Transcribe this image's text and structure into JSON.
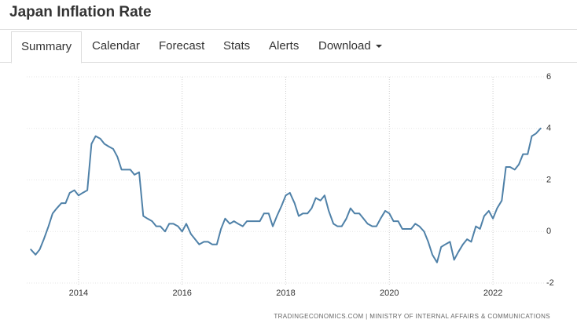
{
  "header": {
    "title": "Japan Inflation Rate"
  },
  "tabs": [
    "Summary",
    "Calendar",
    "Forecast",
    "Stats",
    "Alerts",
    "Download"
  ],
  "chart_data": {
    "type": "line",
    "color": "#4f81a8",
    "source": "TRADINGECONOMICS.COM | MINISTRY OF INTERNAL AFFAIRS & COMMUNICATIONS",
    "xlim": [
      2013,
      2023
    ],
    "xticks": [
      2014,
      2016,
      2018,
      2020,
      2022
    ],
    "ylim": [
      -2,
      6
    ],
    "yticks": [
      -2,
      0,
      2,
      4,
      6
    ],
    "grid": true,
    "x": [
      2013.08,
      2013.17,
      2013.25,
      2013.33,
      2013.42,
      2013.5,
      2013.58,
      2013.67,
      2013.75,
      2013.83,
      2013.92,
      2014,
      2014.08,
      2014.17,
      2014.25,
      2014.33,
      2014.42,
      2014.5,
      2014.58,
      2014.67,
      2014.75,
      2014.83,
      2014.92,
      2015,
      2015.08,
      2015.17,
      2015.25,
      2015.33,
      2015.42,
      2015.5,
      2015.58,
      2015.67,
      2015.75,
      2015.83,
      2015.92,
      2016,
      2016.08,
      2016.17,
      2016.25,
      2016.33,
      2016.42,
      2016.5,
      2016.58,
      2016.67,
      2016.75,
      2016.83,
      2016.92,
      2017,
      2017.08,
      2017.17,
      2017.25,
      2017.33,
      2017.42,
      2017.5,
      2017.58,
      2017.67,
      2017.75,
      2017.83,
      2017.92,
      2018,
      2018.08,
      2018.17,
      2018.25,
      2018.33,
      2018.42,
      2018.5,
      2018.58,
      2018.67,
      2018.75,
      2018.83,
      2018.92,
      2019,
      2019.08,
      2019.17,
      2019.25,
      2019.33,
      2019.42,
      2019.5,
      2019.58,
      2019.67,
      2019.75,
      2019.83,
      2019.92,
      2020,
      2020.08,
      2020.17,
      2020.25,
      2020.33,
      2020.42,
      2020.5,
      2020.58,
      2020.67,
      2020.75,
      2020.83,
      2020.92,
      2021,
      2021.08,
      2021.17,
      2021.25,
      2021.33,
      2021.42,
      2021.5,
      2021.58,
      2021.67,
      2021.75,
      2021.83,
      2021.92,
      2022,
      2022.08,
      2022.17,
      2022.25,
      2022.33,
      2022.42,
      2022.5,
      2022.58,
      2022.67,
      2022.75,
      2022.83,
      2022.92
    ],
    "values": [
      -0.7,
      -0.9,
      -0.7,
      -0.3,
      0.2,
      0.7,
      0.9,
      1.1,
      1.1,
      1.5,
      1.6,
      1.4,
      1.5,
      1.6,
      3.4,
      3.7,
      3.6,
      3.4,
      3.3,
      3.2,
      2.9,
      2.4,
      2.4,
      2.4,
      2.2,
      2.3,
      0.6,
      0.5,
      0.4,
      0.2,
      0.2,
      0.0,
      0.3,
      0.3,
      0.2,
      0.0,
      0.3,
      -0.1,
      -0.3,
      -0.5,
      -0.4,
      -0.4,
      -0.5,
      -0.5,
      0.1,
      0.5,
      0.3,
      0.4,
      0.3,
      0.2,
      0.4,
      0.4,
      0.4,
      0.4,
      0.7,
      0.7,
      0.2,
      0.6,
      1.0,
      1.4,
      1.5,
      1.1,
      0.6,
      0.7,
      0.7,
      0.9,
      1.3,
      1.2,
      1.4,
      0.8,
      0.3,
      0.2,
      0.2,
      0.5,
      0.9,
      0.7,
      0.7,
      0.5,
      0.3,
      0.2,
      0.2,
      0.5,
      0.8,
      0.7,
      0.4,
      0.4,
      0.1,
      0.1,
      0.1,
      0.3,
      0.2,
      0.0,
      -0.4,
      -0.9,
      -1.2,
      -0.6,
      -0.5,
      -0.4,
      -1.1,
      -0.8,
      -0.5,
      -0.3,
      -0.4,
      0.2,
      0.1,
      0.6,
      0.8,
      0.5,
      0.9,
      1.2,
      2.5,
      2.5,
      2.4,
      2.6,
      3.0,
      3.0,
      3.7,
      3.8,
      4.0
    ]
  }
}
